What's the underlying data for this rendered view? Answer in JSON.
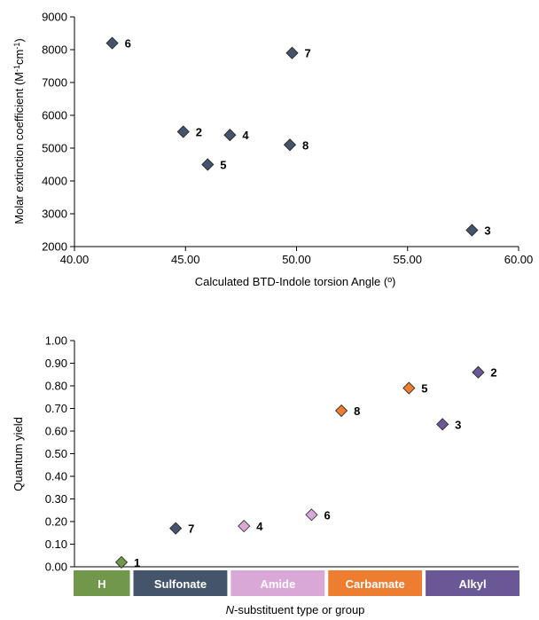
{
  "chart_data": [
    {
      "type": "scatter",
      "title": "",
      "xlabel": "Calculated BTD-Indole torsion Angle (º)",
      "ylabel": "Molar extinction coefficient (M-1cm-1)",
      "ylabel_parts": [
        "Molar extinction coefficient (M",
        "-1",
        "cm",
        "-1",
        ")"
      ],
      "xlim": [
        40,
        60
      ],
      "ylim": [
        2000,
        9000
      ],
      "xticks": [
        "40.00",
        "45.00",
        "50.00",
        "55.00",
        "60.00"
      ],
      "yticks": [
        "2000",
        "3000",
        "4000",
        "5000",
        "6000",
        "7000",
        "8000",
        "9000"
      ],
      "grid": false,
      "marker": "diamond",
      "marker_color": "#44546a",
      "points": [
        {
          "label": "6",
          "x": 41.7,
          "y": 8200
        },
        {
          "label": "7",
          "x": 49.8,
          "y": 7900
        },
        {
          "label": "2",
          "x": 44.9,
          "y": 5500
        },
        {
          "label": "4",
          "x": 47.0,
          "y": 5400
        },
        {
          "label": "8",
          "x": 49.7,
          "y": 5100
        },
        {
          "label": "5",
          "x": 46.0,
          "y": 4500
        },
        {
          "label": "3",
          "x": 57.9,
          "y": 2500
        }
      ]
    },
    {
      "type": "scatter",
      "title": "",
      "xlabel": "N-substituent type or group",
      "xlabel_italic": "N",
      "xlabel_rest": "-substituent type or group",
      "ylabel": "Quantum yield",
      "ylim": [
        0,
        1
      ],
      "yticks": [
        "0.00",
        "0.10",
        "0.20",
        "0.30",
        "0.40",
        "0.50",
        "0.60",
        "0.70",
        "0.80",
        "0.90",
        "1.00"
      ],
      "grid": false,
      "marker": "diamond",
      "groups": [
        {
          "name": "H",
          "color": "#70974a"
        },
        {
          "name": "Sulfonate",
          "color": "#44546a"
        },
        {
          "name": "Amide",
          "color": "#d9a8d6"
        },
        {
          "name": "Carbamate",
          "color": "#ed7d31"
        },
        {
          "name": "Alkyl",
          "color": "#6a5796"
        }
      ],
      "points": [
        {
          "label": "1",
          "group": "H",
          "y": 0.02
        },
        {
          "label": "7",
          "group": "Sulfonate",
          "y": 0.17
        },
        {
          "label": "4",
          "group": "Amide",
          "y": 0.18
        },
        {
          "label": "6",
          "group": "Amide",
          "y": 0.23
        },
        {
          "label": "8",
          "group": "Carbamate",
          "y": 0.69
        },
        {
          "label": "5",
          "group": "Carbamate",
          "y": 0.79
        },
        {
          "label": "3",
          "group": "Alkyl",
          "y": 0.63
        },
        {
          "label": "2",
          "group": "Alkyl",
          "y": 0.86
        }
      ]
    }
  ]
}
